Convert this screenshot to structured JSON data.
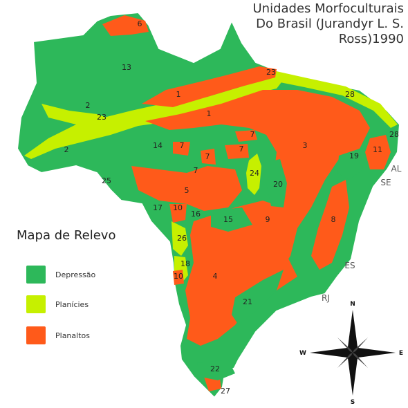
{
  "title": {
    "line1": "Unidades Morfoculturais",
    "line2": "Do Brasil (Jurandyr L. S.",
    "line3": "Ross)1990"
  },
  "legend": {
    "title": "Mapa de Relevo",
    "items": [
      {
        "label": "Depressão",
        "color": "#2db85a"
      },
      {
        "label": "Planícies",
        "color": "#c6f000"
      },
      {
        "label": "Planaltos",
        "color": "#ff5a1a"
      }
    ]
  },
  "colors": {
    "depressao": "#2db85a",
    "planicie": "#c6f000",
    "planalto": "#ff5a1a"
  },
  "state_labels": [
    "AL",
    "SE",
    "ES",
    "RJ"
  ],
  "unit_labels": [
    "6",
    "13",
    "23",
    "28",
    "1",
    "1",
    "2",
    "23",
    "3",
    "28",
    "2",
    "14",
    "7",
    "7",
    "7",
    "7",
    "11",
    "19",
    "24",
    "20",
    "7",
    "25",
    "5",
    "17",
    "10",
    "16",
    "15",
    "9",
    "8",
    "26",
    "18",
    "10",
    "4",
    "21",
    "22",
    "27"
  ],
  "compass": {
    "n": "N",
    "s": "S",
    "e": "E",
    "w": "W"
  }
}
